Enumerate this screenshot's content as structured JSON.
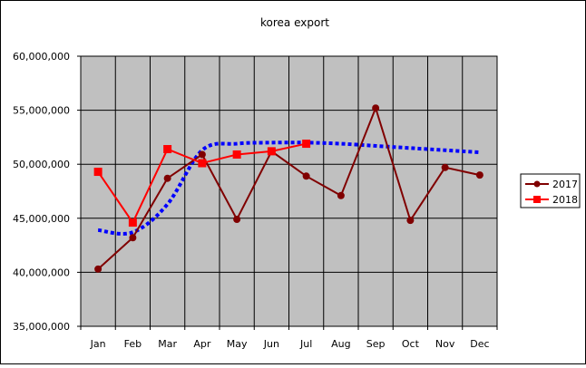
{
  "chart_data": {
    "type": "line",
    "title": "korea export",
    "categories": [
      "Jan",
      "Feb",
      "Mar",
      "Apr",
      "May",
      "Jun",
      "Jul",
      "Aug",
      "Sep",
      "Oct",
      "Nov",
      "Dec"
    ],
    "ylim": [
      35000000,
      60000000
    ],
    "yticks": [
      35000000,
      40000000,
      45000000,
      50000000,
      55000000,
      60000000
    ],
    "ytick_labels": [
      "35,000,000",
      "40,000,000",
      "45,000,000",
      "50,000,000",
      "55,000,000",
      "60,000,000"
    ],
    "grid": true,
    "legend_position": "right",
    "plot_background": "#c0c0c0",
    "series": [
      {
        "name": "2017",
        "color": "#800000",
        "marker": "circle",
        "values": [
          40300000,
          43200000,
          48700000,
          50900000,
          44900000,
          51200000,
          48900000,
          47100000,
          55200000,
          44800000,
          49700000,
          49000000
        ]
      },
      {
        "name": "2018",
        "color": "#ff0000",
        "marker": "square",
        "values": [
          49300000,
          44600000,
          51400000,
          50100000,
          50900000,
          51200000,
          51900000,
          null,
          null,
          null,
          null,
          null
        ]
      }
    ],
    "trendline": {
      "style": "dotted",
      "color": "#0000ff",
      "values": [
        43900000,
        43700000,
        46300000,
        51300000,
        51900000,
        52000000,
        52000000,
        51900000,
        51700000,
        51500000,
        51300000,
        51100000
      ]
    }
  }
}
